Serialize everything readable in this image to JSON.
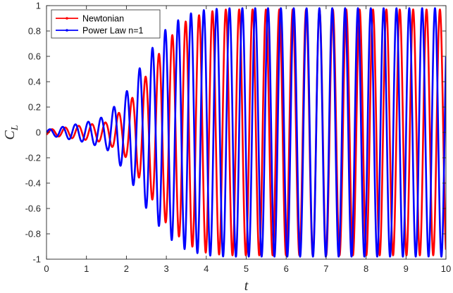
{
  "chart_data": {
    "type": "line",
    "title": "",
    "xlabel": "t",
    "ylabel": {
      "main": "C",
      "subscript": "L"
    },
    "xlim": [
      0,
      10
    ],
    "ylim": [
      -1,
      1
    ],
    "xticks": [
      "0",
      "1",
      "2",
      "3",
      "4",
      "5",
      "6",
      "7",
      "8",
      "9",
      "10"
    ],
    "yticks": [
      "-1",
      "-0.8",
      "-0.6",
      "-0.4",
      "-0.2",
      "0",
      "0.2",
      "0.4",
      "0.6",
      "0.8",
      "1"
    ],
    "grid": false,
    "legend_position": "top-left",
    "series": [
      {
        "name": "Newtonian",
        "color": "#ff0000",
        "marker": "dot",
        "period": 0.335,
        "phase_offset": 0.05,
        "amplitude_envelope": {
          "t": [
            0,
            0.5,
            1.0,
            1.5,
            2.0,
            2.5,
            3.0,
            3.5,
            4.0,
            4.5,
            10
          ],
          "amp": [
            0.02,
            0.04,
            0.06,
            0.08,
            0.2,
            0.45,
            0.72,
            0.88,
            0.95,
            0.97,
            0.97
          ]
        }
      },
      {
        "name": "Power Law n=1",
        "color": "#0000ff",
        "marker": "dot",
        "period": 0.3215,
        "phase_offset": 0.0,
        "amplitude_envelope": {
          "t": [
            0,
            0.5,
            1.0,
            1.5,
            2.0,
            2.5,
            3.0,
            3.5,
            4.0,
            4.5,
            10
          ],
          "amp": [
            0.02,
            0.05,
            0.08,
            0.13,
            0.32,
            0.6,
            0.82,
            0.93,
            0.97,
            0.98,
            0.98
          ]
        }
      }
    ]
  }
}
